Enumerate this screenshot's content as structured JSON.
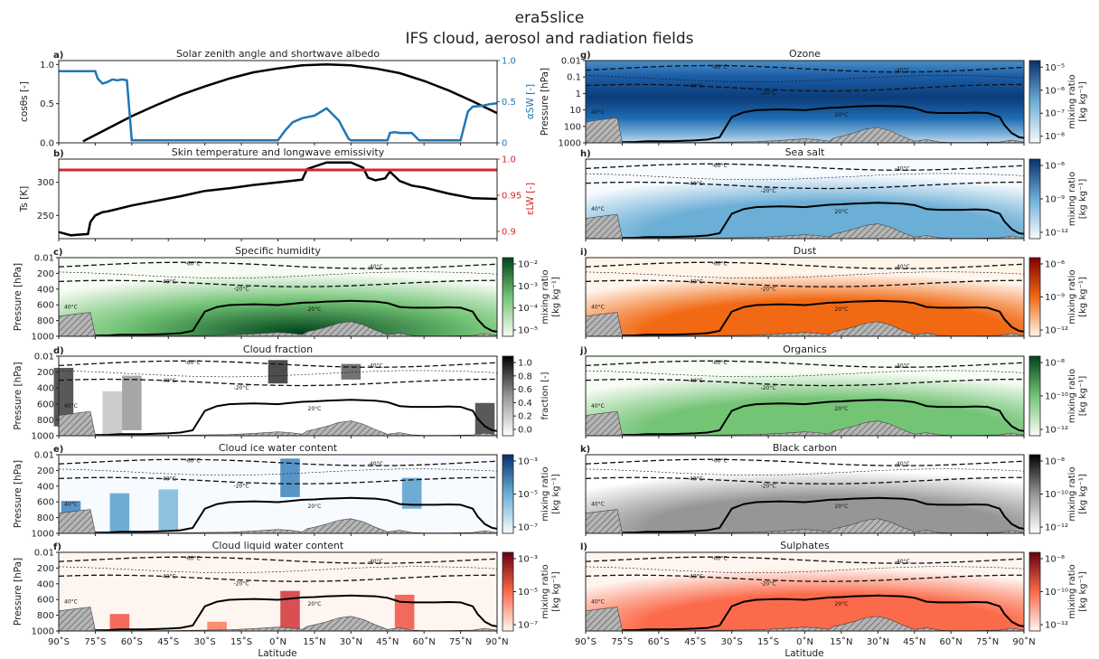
{
  "figure": {
    "title": "era5slice",
    "subtitle": "IFS cloud, aerosol and radiation fields",
    "xlabel": "Latitude"
  },
  "colors": {
    "blue": "#1f77b4",
    "red": "#d62728",
    "black": "#000000",
    "ground_hatch": "#9a9a9a"
  },
  "chart_data": [
    {
      "id": "a",
      "label": "a)",
      "type": "line",
      "title": "Solar zenith angle and shortwave albedo",
      "ylabel": "cosθs [-]",
      "ylabel_right": "αSW [-]",
      "ylim": [
        0,
        1.05
      ],
      "yticks": [
        "0.0",
        "0.5",
        "1.0"
      ],
      "ylim_right": [
        0,
        1
      ],
      "yticks_right": [
        "0",
        "0.5",
        "1.0"
      ],
      "series": [
        {
          "color": "black",
          "x": [
            -80,
            -70,
            -60,
            -50,
            -40,
            -30,
            -20,
            -10,
            0,
            10,
            20,
            30,
            40,
            50,
            60,
            70,
            80,
            90
          ],
          "y": [
            0.02,
            0.18,
            0.34,
            0.48,
            0.61,
            0.72,
            0.82,
            0.9,
            0.95,
            0.99,
            1.0,
            0.99,
            0.95,
            0.89,
            0.79,
            0.67,
            0.53,
            0.38
          ]
        },
        {
          "color": "blue",
          "axis": "right",
          "x": [
            -90,
            -75,
            -74,
            -72,
            -70,
            -68,
            -66,
            -64,
            -62,
            -61,
            -60,
            -50,
            -40,
            -30,
            -20,
            -10,
            0,
            3,
            6,
            10,
            15,
            20,
            25,
            29,
            30,
            35,
            40,
            45,
            46,
            48,
            50,
            55,
            58,
            60,
            70,
            75,
            78,
            80,
            84,
            87,
            90
          ],
          "y": [
            0.87,
            0.87,
            0.78,
            0.72,
            0.74,
            0.77,
            0.76,
            0.77,
            0.76,
            0.4,
            0.03,
            0.03,
            0.03,
            0.03,
            0.03,
            0.03,
            0.03,
            0.15,
            0.25,
            0.3,
            0.33,
            0.42,
            0.27,
            0.05,
            0.03,
            0.03,
            0.03,
            0.03,
            0.12,
            0.13,
            0.12,
            0.12,
            0.03,
            0.03,
            0.03,
            0.03,
            0.38,
            0.44,
            0.45,
            0.47,
            0.48
          ]
        }
      ]
    },
    {
      "id": "b",
      "label": "b)",
      "type": "line",
      "title": "Skin temperature and longwave emissivity",
      "ylabel": "Ts [K]",
      "ylabel_right": "εLW [-]",
      "ylim": [
        215,
        335
      ],
      "yticks": [
        "250",
        "300"
      ],
      "ylim_right": [
        0.89,
        1.0
      ],
      "yticks_right": [
        "0.9",
        "0.95",
        "1.0"
      ],
      "series": [
        {
          "color": "black",
          "x": [
            -90,
            -85,
            -82,
            -78,
            -77,
            -75,
            -72,
            -70,
            -60,
            -50,
            -40,
            -30,
            -20,
            -10,
            0,
            5,
            10,
            12,
            20,
            30,
            35,
            37,
            40,
            44,
            46,
            50,
            55,
            60,
            70,
            80,
            90
          ],
          "y": [
            225,
            220,
            221,
            222,
            240,
            250,
            255,
            256,
            265,
            272,
            279,
            287,
            291,
            296,
            300,
            302,
            304,
            320,
            330,
            330,
            322,
            307,
            303,
            306,
            316,
            302,
            295,
            292,
            283,
            276,
            275
          ]
        },
        {
          "color": "red",
          "axis": "right",
          "x": [
            -90,
            90
          ],
          "y": [
            0.985,
            0.985
          ]
        }
      ]
    },
    {
      "id": "c",
      "label": "c)",
      "type": "heatmap",
      "title": "Specific humidity",
      "ylabel": "Pressure [hPa]",
      "yticks": [
        "0.01",
        "200",
        "400",
        "600",
        "800",
        "1000"
      ],
      "cmap": "greens",
      "colorbar": {
        "label": "mixing ratio",
        "units": "[kg kg⁻¹]",
        "ticks": [
          "10⁻²",
          "10⁻³",
          "10⁻⁴",
          "10⁻⁵"
        ]
      }
    },
    {
      "id": "d",
      "label": "d)",
      "type": "heatmap",
      "title": "Cloud fraction",
      "ylabel": "Pressure [hPa]",
      "yticks": [
        "0.01",
        "200",
        "400",
        "600",
        "800",
        "1000"
      ],
      "cmap": "greys",
      "colorbar": {
        "label": "fraction [-]",
        "units": "",
        "ticks": [
          "1.0",
          "0.8",
          "0.6",
          "0.4",
          "0.2",
          "0.0"
        ]
      }
    },
    {
      "id": "e",
      "label": "e)",
      "type": "heatmap",
      "title": "Cloud ice water content",
      "ylabel": "Pressure [hPa]",
      "yticks": [
        "0.01",
        "200",
        "400",
        "600",
        "800",
        "1000"
      ],
      "cmap": "blues",
      "colorbar": {
        "label": "mixing ratio",
        "units": "[kg kg⁻¹]",
        "ticks": [
          "10⁻³",
          "10⁻⁵",
          "10⁻⁷"
        ]
      }
    },
    {
      "id": "f",
      "label": "f)",
      "type": "heatmap",
      "title": "Cloud liquid water content",
      "ylabel": "Pressure [hPa]",
      "yticks": [
        "0.01",
        "200",
        "400",
        "600",
        "800",
        "1000"
      ],
      "cmap": "reds",
      "colorbar": {
        "label": "mixing ratio",
        "units": "[kg kg⁻¹]",
        "ticks": [
          "10⁻³",
          "10⁻⁵",
          "10⁻⁷"
        ]
      }
    },
    {
      "id": "g",
      "label": "g)",
      "type": "heatmap",
      "title": "Ozone",
      "ylabel": "Pressure [hPa]",
      "yticks": [
        "0.01",
        "0.1",
        "1",
        "10",
        "100",
        "1000"
      ],
      "cmap": "blues",
      "colorbar": {
        "label": "mixing ratio",
        "units": "[kg kg⁻¹]",
        "ticks": [
          "10⁻⁵",
          "10⁻⁶",
          "10⁻⁷",
          "10⁻⁸"
        ]
      }
    },
    {
      "id": "h",
      "label": "h)",
      "type": "heatmap",
      "title": "Sea salt",
      "ylabel": "",
      "yticks": [],
      "cmap": "blues",
      "colorbar": {
        "label": "mixing ratio",
        "units": "[kg kg⁻¹]",
        "ticks": [
          "10⁻⁶",
          "10⁻⁹",
          "10⁻¹²"
        ]
      }
    },
    {
      "id": "i",
      "label": "i)",
      "type": "heatmap",
      "title": "Dust",
      "ylabel": "",
      "yticks": [],
      "cmap": "oranges",
      "colorbar": {
        "label": "mixing ratio",
        "units": "[kg kg⁻¹]",
        "ticks": [
          "10⁻⁶",
          "10⁻⁹",
          "10⁻¹²"
        ]
      }
    },
    {
      "id": "j",
      "label": "j)",
      "type": "heatmap",
      "title": "Organics",
      "ylabel": "",
      "yticks": [],
      "cmap": "greens",
      "colorbar": {
        "label": "mixing ratio",
        "units": "[kg kg⁻¹]",
        "ticks": [
          "10⁻⁸",
          "10⁻¹⁰",
          "10⁻¹²"
        ]
      }
    },
    {
      "id": "k",
      "label": "k)",
      "type": "heatmap",
      "title": "Black carbon",
      "ylabel": "",
      "yticks": [],
      "cmap": "greys",
      "colorbar": {
        "label": "mixing ratio",
        "units": "[kg kg⁻¹]",
        "ticks": [
          "10⁻⁸",
          "10⁻¹⁰",
          "10⁻¹²"
        ]
      }
    },
    {
      "id": "l",
      "label": "l)",
      "type": "heatmap",
      "title": "Sulphates",
      "ylabel": "",
      "yticks": [],
      "cmap": "reds",
      "colorbar": {
        "label": "mixing ratio",
        "units": "[kg kg⁻¹]",
        "ticks": [
          "10⁻⁸",
          "10⁻¹⁰",
          "10⁻¹²"
        ]
      }
    }
  ],
  "xaxis": {
    "range": [
      -90,
      90
    ],
    "ticks": [
      -90,
      -75,
      -60,
      -45,
      -30,
      -15,
      0,
      15,
      30,
      45,
      60,
      75,
      90
    ],
    "ticklabels": [
      "90˚S",
      "75˚S",
      "60˚S",
      "45˚S",
      "30˚S",
      "15˚S",
      "0˚N",
      "15˚N",
      "30˚N",
      "45˚N",
      "60˚N",
      "75˚N",
      "90˚N"
    ]
  },
  "isotherms": {
    "labels": [
      "-80°C",
      "-60°C",
      "-40°C",
      "-20°C",
      "0°C",
      "20°C",
      "40°C"
    ],
    "zero_line": {
      "x": [
        -90,
        -85,
        -80,
        -75,
        -70,
        -65,
        -60,
        -55,
        -50,
        -45,
        -40,
        -35,
        -30,
        -25,
        -20,
        -15,
        -10,
        -5,
        0,
        5,
        10,
        15,
        20,
        25,
        30,
        35,
        40,
        45,
        50,
        55,
        60,
        65,
        70,
        75,
        80,
        82,
        85,
        88,
        90
      ],
      "p": [
        1000,
        1010,
        1010,
        1010,
        1010,
        1000,
        1000,
        1000,
        995,
        990,
        980,
        950,
        700,
        640,
        615,
        610,
        605,
        610,
        615,
        600,
        585,
        580,
        570,
        565,
        560,
        565,
        570,
        590,
        640,
        650,
        650,
        650,
        645,
        650,
        700,
        800,
        900,
        950,
        960
      ]
    },
    "ground": {
      "x": [
        -90,
        -85,
        -80,
        -77,
        -75,
        -72,
        -70,
        -60,
        -45,
        -30,
        -20,
        -10,
        0,
        5,
        10,
        12,
        15,
        20,
        25,
        30,
        35,
        40,
        45,
        50,
        55,
        60,
        70,
        80,
        85,
        90
      ],
      "p": [
        760,
        740,
        720,
        710,
        1010,
        1015,
        1015,
        1015,
        1015,
        1010,
        1005,
        990,
        970,
        980,
        1000,
        960,
        940,
        900,
        850,
        830,
        870,
        940,
        1000,
        980,
        1010,
        1015,
        1015,
        1010,
        985,
        1010
      ]
    }
  }
}
